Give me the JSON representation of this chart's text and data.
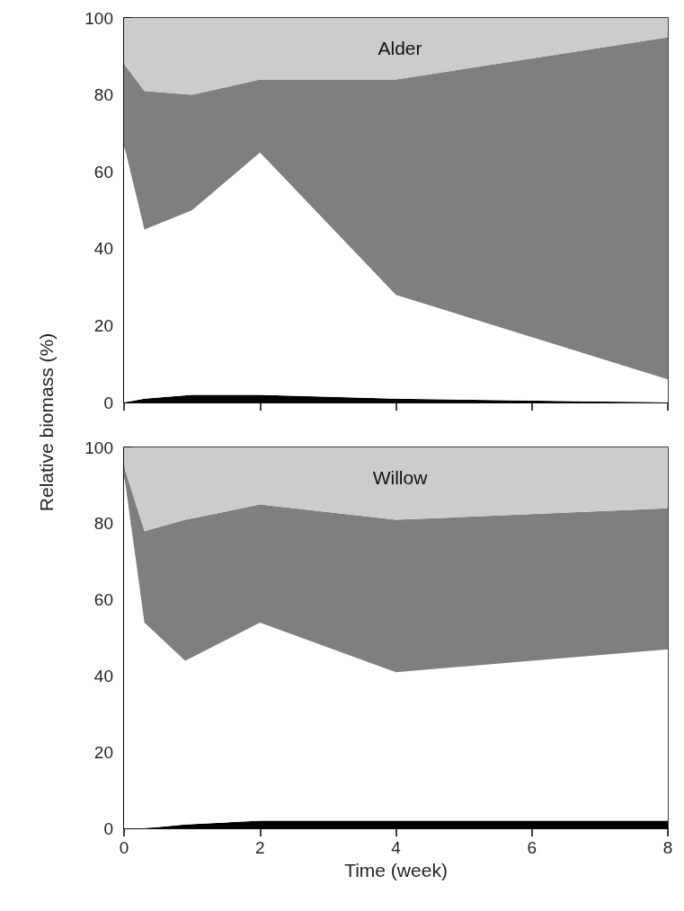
{
  "chart_data": [
    {
      "type": "area",
      "title": "Alder",
      "ylabel": "Relative biomass (%)",
      "stacked": true,
      "x": [
        0,
        0.3,
        1,
        2,
        4,
        8
      ],
      "xlim": [
        0,
        8
      ],
      "xticks": [
        {
          "value": 0,
          "label": null
        },
        {
          "value": 2,
          "label": null
        },
        {
          "value": 4,
          "label": null
        },
        {
          "value": 6,
          "label": null
        },
        {
          "value": 8,
          "label": null
        }
      ],
      "ylim": [
        0,
        100
      ],
      "yticks": [
        0,
        20,
        40,
        60,
        80,
        100
      ],
      "tick_labels": "y",
      "grid": false,
      "series": [
        {
          "color": "#000000",
          "values": [
            0,
            1,
            2,
            2,
            1,
            0
          ]
        },
        {
          "color": "#ffffff",
          "values": [
            67,
            44,
            48,
            63,
            27,
            6
          ]
        },
        {
          "color": "#7f7f7f",
          "values": [
            21,
            36,
            30,
            19,
            56,
            89
          ]
        },
        {
          "color": "#cccccc",
          "values": [
            12,
            19,
            20,
            16,
            16,
            5
          ]
        }
      ]
    },
    {
      "type": "area",
      "title": "Willow",
      "xlabel": "Time (week)",
      "stacked": true,
      "x": [
        0,
        0.3,
        0.9,
        2,
        4,
        8
      ],
      "xlim": [
        0,
        8
      ],
      "xticks": [
        0,
        2,
        4,
        6,
        8
      ],
      "ylim": [
        0,
        100
      ],
      "yticks": [
        0,
        20,
        40,
        60,
        80,
        100
      ],
      "grid": false,
      "series": [
        {
          "color": "#000000",
          "values": [
            0,
            0,
            1,
            2,
            2,
            2
          ]
        },
        {
          "color": "#ffffff",
          "values": [
            93,
            54,
            43,
            52,
            39,
            45
          ]
        },
        {
          "color": "#7f7f7f",
          "values": [
            2,
            24,
            37,
            31,
            40,
            37
          ]
        },
        {
          "color": "#cccccc",
          "values": [
            5,
            22,
            19,
            15,
            19,
            16
          ]
        }
      ]
    }
  ]
}
